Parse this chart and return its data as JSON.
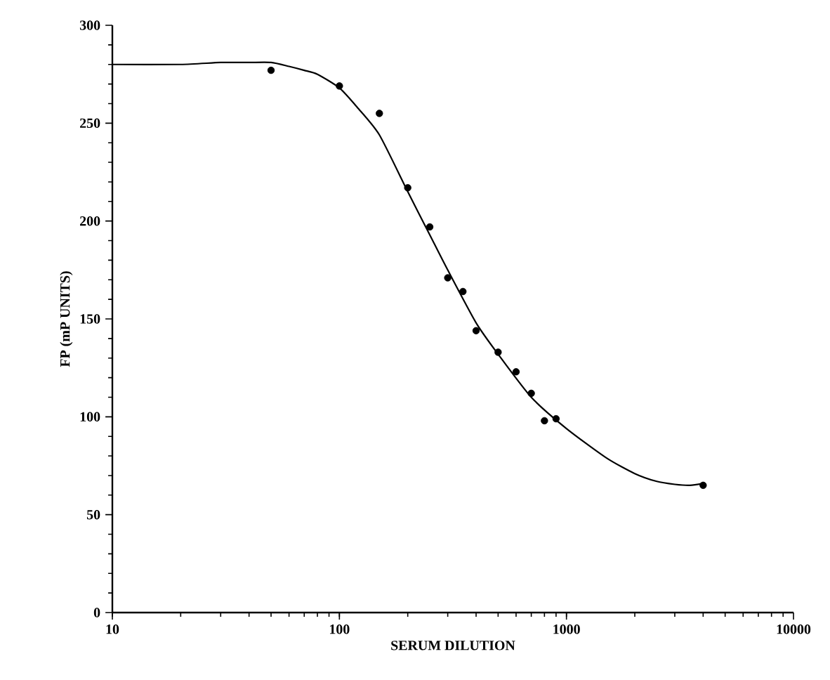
{
  "chart_data": {
    "type": "scatter",
    "xlabel": "SERUM DILUTION",
    "ylabel": "FP (mP UNITS)",
    "log": "x",
    "xlim": [
      10,
      10000
    ],
    "xticks": [
      10,
      100,
      1000,
      10000
    ],
    "ylim": [
      0,
      300
    ],
    "yticks": [
      0,
      50,
      100,
      150,
      200,
      250,
      300
    ],
    "grid": false,
    "series": [
      {
        "color": "#000000",
        "marker": "circle",
        "x": [
          50,
          100,
          150,
          200,
          250,
          300,
          350,
          400,
          500,
          600,
          700,
          800,
          900,
          4000
        ],
        "values": [
          277,
          269,
          255,
          217,
          197,
          171,
          164,
          144,
          133,
          123,
          112,
          98,
          99,
          65
        ]
      },
      {
        "type": "line",
        "color": "#000000",
        "marker": "none",
        "line_style": "solid",
        "x": [
          10,
          20,
          30,
          40,
          50,
          60,
          70,
          80,
          100,
          120,
          150,
          200,
          250,
          300,
          400,
          500,
          700,
          1000,
          1500,
          2000,
          2500,
          3000,
          3500,
          4000
        ],
        "values": [
          280,
          280,
          281,
          281,
          281,
          279,
          277,
          275,
          268,
          258,
          244,
          215,
          193,
          175,
          148,
          132,
          110,
          94,
          79,
          71,
          67,
          65.5,
          65,
          66
        ]
      }
    ]
  }
}
